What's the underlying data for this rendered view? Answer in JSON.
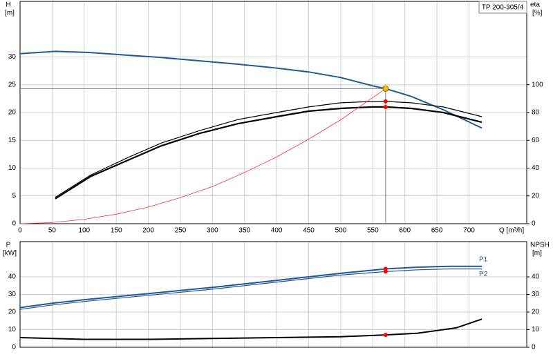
{
  "chart_data": [
    {
      "type": "line",
      "title": "TP 200-305/4",
      "x_label": "Q [m³/h]",
      "y_label": "H",
      "y_unit": "[m]",
      "y2_label": "eta",
      "y2_unit": "[%]",
      "xlim": [
        0,
        790
      ],
      "xticks": [
        0,
        50,
        100,
        150,
        200,
        250,
        300,
        350,
        400,
        450,
        500,
        550,
        600,
        650,
        700
      ],
      "ylim": [
        0,
        40
      ],
      "yticks": [
        0,
        5,
        10,
        15,
        20,
        25,
        30
      ],
      "y2lim": [
        0,
        160
      ],
      "y2ticks": [
        0,
        20,
        40,
        60,
        80,
        100
      ],
      "grid": true,
      "series": [
        {
          "color": "#1f5a96",
          "width": 2,
          "x": [
            0,
            55,
            110,
            170,
            220,
            280,
            340,
            400,
            450,
            500,
            550,
            570,
            610,
            660,
            720
          ],
          "values": [
            30.6,
            31.0,
            30.8,
            30.3,
            29.9,
            29.3,
            28.7,
            28.0,
            27.3,
            26.3,
            24.8,
            24.3,
            22.9,
            20.5,
            17.2
          ]
        },
        {
          "color": "#000000",
          "width": 1.2,
          "axis": "y2",
          "x": [
            55,
            110,
            170,
            220,
            280,
            340,
            400,
            450,
            500,
            550,
            570,
            610,
            660,
            720
          ],
          "values": [
            19,
            35,
            48,
            58,
            67,
            75,
            80,
            84,
            87,
            88,
            88,
            87,
            84,
            77
          ]
        },
        {
          "color": "#000000",
          "width": 2.2,
          "axis": "y2",
          "x": [
            55,
            110,
            170,
            220,
            280,
            340,
            400,
            450,
            500,
            550,
            570,
            610,
            660,
            720
          ],
          "values": [
            18,
            34,
            46,
            56,
            65,
            72,
            77,
            81,
            83,
            84,
            84,
            83,
            80,
            73
          ]
        },
        {
          "color": "#ff3030",
          "width": 0.8,
          "x": [
            0,
            50,
            100,
            150,
            200,
            250,
            300,
            350,
            400,
            450,
            500,
            570
          ],
          "values": [
            0,
            0.2,
            0.8,
            1.7,
            3.0,
            4.7,
            6.7,
            9.2,
            12.0,
            15.2,
            18.7,
            24.3
          ]
        }
      ],
      "points": [
        {
          "x": 570,
          "y": 24.3,
          "color": "#ffc000",
          "reference": true
        },
        {
          "x": 570,
          "y": 88,
          "axis": "y2",
          "color": "#ff0000"
        },
        {
          "x": 570,
          "y": 84,
          "axis": "y2",
          "color": "#ff0000"
        }
      ]
    },
    {
      "type": "line",
      "y_label": "P",
      "y_unit": "[kW]",
      "y2_label": "NPSH",
      "y2_unit": "[m]",
      "xlim": [
        0,
        790
      ],
      "xticks": [
        0,
        50,
        100,
        150,
        200,
        250,
        300,
        350,
        400,
        450,
        500,
        550,
        600,
        650,
        700
      ],
      "ylim": [
        0,
        60
      ],
      "yticks": [
        0,
        10,
        20,
        30,
        40
      ],
      "y2lim": [
        0,
        60
      ],
      "y2ticks": [
        0,
        10,
        20,
        30,
        40
      ],
      "grid": true,
      "series": [
        {
          "name": "P1",
          "color": "#1f5a96",
          "width": 2,
          "x": [
            0,
            50,
            100,
            200,
            300,
            400,
            500,
            570,
            620,
            670,
            720
          ],
          "values": [
            22.5,
            25,
            27,
            30.5,
            34,
            38,
            42,
            44.5,
            45.5,
            46,
            46
          ]
        },
        {
          "name": "P2",
          "color": "#1f5a96",
          "width": 1.2,
          "x": [
            0,
            50,
            100,
            200,
            300,
            400,
            500,
            570,
            620,
            670,
            720
          ],
          "values": [
            21.5,
            24,
            26,
            29.5,
            33,
            37,
            41,
            43,
            44,
            44.5,
            44.5
          ]
        },
        {
          "color": "#000000",
          "width": 2,
          "axis": "y2",
          "x": [
            0,
            100,
            200,
            300,
            400,
            500,
            570,
            620,
            680,
            720
          ],
          "values": [
            5.5,
            4.5,
            4.5,
            5,
            5.5,
            6,
            7,
            8,
            11,
            16
          ]
        }
      ],
      "points": [
        {
          "x": 570,
          "y": 44.5,
          "color": "#ff0000"
        },
        {
          "x": 570,
          "y": 43,
          "color": "#ff0000"
        },
        {
          "x": 570,
          "y": 7,
          "axis": "y2",
          "color": "#ff0000"
        }
      ]
    }
  ]
}
